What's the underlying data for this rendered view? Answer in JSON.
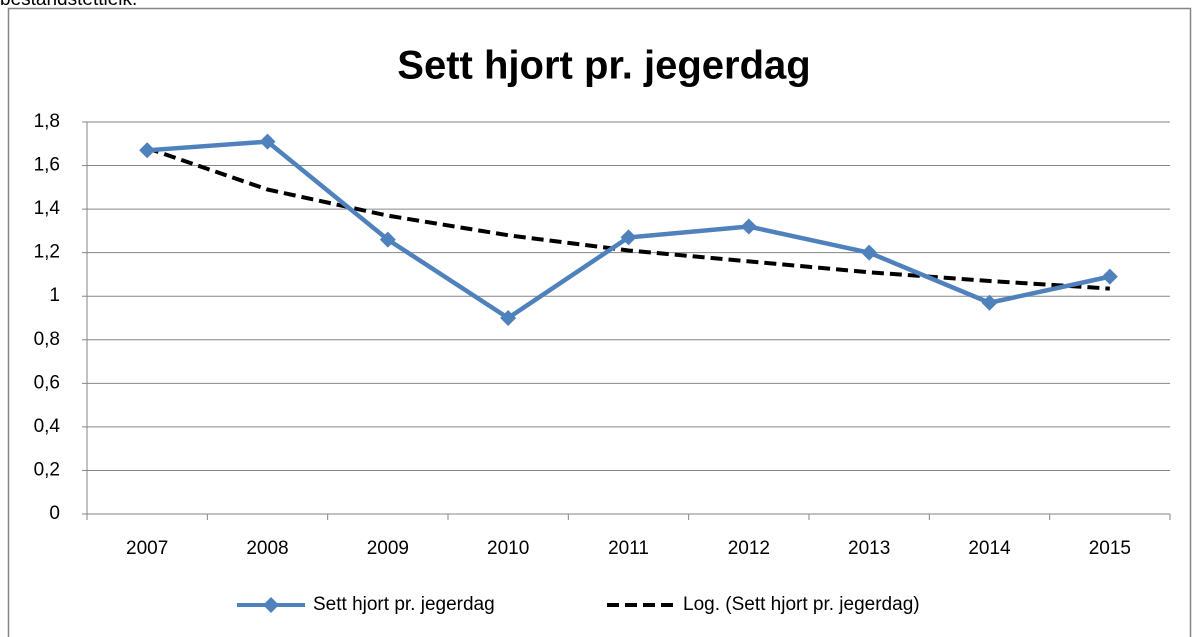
{
  "text_above": "bestandstettleik.",
  "chart_data": {
    "type": "line",
    "title": "Sett hjort pr. jegerdag",
    "categories": [
      "2007",
      "2008",
      "2009",
      "2010",
      "2011",
      "2012",
      "2013",
      "2014",
      "2015"
    ],
    "series": [
      {
        "name": "Sett hjort pr. jegerdag",
        "color": "#4f81bd",
        "marker": "diamond",
        "values": [
          1.67,
          1.71,
          1.26,
          0.9,
          1.27,
          1.32,
          1.2,
          0.97,
          1.09
        ]
      },
      {
        "name": "Log. (Sett hjort pr. jegerdag)",
        "color": "#000000",
        "dashed": true,
        "values": [
          1.68,
          1.49,
          1.37,
          1.28,
          1.21,
          1.16,
          1.11,
          1.07,
          1.035
        ]
      }
    ],
    "ylim": [
      0,
      1.8
    ],
    "yticks": [
      0,
      {
        "value": 0.2,
        "label": "0,2"
      },
      {
        "value": 0.4,
        "label": "0,4"
      },
      {
        "value": 0.6,
        "label": "0,6"
      },
      {
        "value": 0.8,
        "label": "0,8"
      },
      1,
      {
        "value": 1.2,
        "label": "1,2"
      },
      {
        "value": 1.4,
        "label": "1,4"
      },
      {
        "value": 1.6,
        "label": "1,6"
      },
      {
        "value": 1.8,
        "label": "1,8"
      }
    ],
    "grid": true,
    "legend": "bottom"
  }
}
